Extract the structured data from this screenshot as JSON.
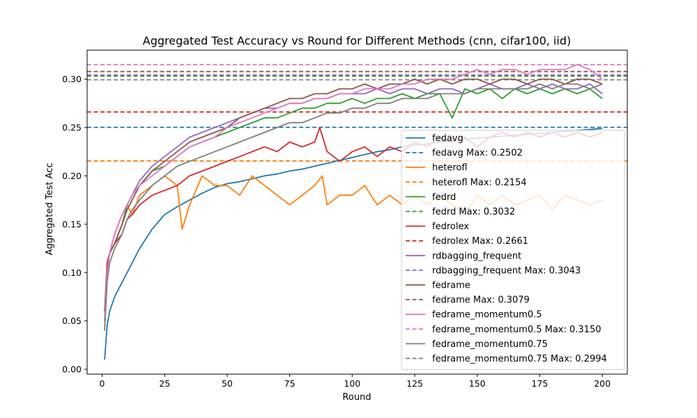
{
  "chart_data": {
    "type": "line",
    "title": "Aggregated Test Accuracy vs Round for Different Methods (cnn, cifar100, iid)",
    "xlabel": "Round",
    "ylabel": "Aggregated Test Acc",
    "xlim": [
      -6,
      210
    ],
    "ylim": [
      -0.005,
      0.33
    ],
    "xticks": [
      0,
      25,
      50,
      75,
      100,
      125,
      150,
      175,
      200
    ],
    "yticks": [
      0.0,
      0.05,
      0.1,
      0.15,
      0.2,
      0.25,
      0.3
    ],
    "xtick_labels": [
      "0",
      "25",
      "50",
      "75",
      "100",
      "125",
      "150",
      "175",
      "200"
    ],
    "ytick_labels": [
      "0.00",
      "0.05",
      "0.10",
      "0.15",
      "0.20",
      "0.25",
      "0.30"
    ],
    "grid": false,
    "legend_position": "lower-right",
    "series": [
      {
        "name": "fedavg",
        "color": "#1f77b4",
        "max": 0.2502,
        "max_label": "fedavg Max: 0.2502",
        "x": [
          1,
          2,
          3,
          5,
          8,
          10,
          12,
          15,
          18,
          20,
          25,
          30,
          35,
          40,
          45,
          50,
          55,
          60,
          65,
          70,
          75,
          80,
          85,
          90,
          95,
          100,
          105,
          110,
          115,
          120,
          125,
          130,
          135,
          140,
          145,
          150,
          155,
          160,
          165,
          170,
          175,
          180,
          185,
          190,
          195,
          200
        ],
        "y": [
          0.01,
          0.045,
          0.06,
          0.075,
          0.09,
          0.1,
          0.11,
          0.125,
          0.137,
          0.145,
          0.16,
          0.168,
          0.175,
          0.182,
          0.188,
          0.192,
          0.194,
          0.197,
          0.2,
          0.202,
          0.205,
          0.207,
          0.21,
          0.213,
          0.216,
          0.219,
          0.222,
          0.225,
          0.227,
          0.23,
          0.232,
          0.233,
          0.235,
          0.236,
          0.238,
          0.239,
          0.24,
          0.241,
          0.242,
          0.243,
          0.244,
          0.245,
          0.246,
          0.247,
          0.248,
          0.249
        ]
      },
      {
        "name": "heterofl",
        "color": "#ff7f0e",
        "max": 0.2154,
        "max_label": "heterofl Max: 0.2154",
        "x": [
          1,
          2,
          3,
          5,
          8,
          10,
          12,
          15,
          20,
          25,
          30,
          32,
          35,
          40,
          45,
          50,
          55,
          60,
          65,
          70,
          75,
          80,
          85,
          88,
          90,
          95,
          100,
          105,
          110,
          115,
          120,
          125,
          130,
          135,
          140,
          145,
          150,
          155,
          160,
          165,
          170,
          175,
          180,
          185,
          190,
          195,
          200
        ],
        "y": [
          0.04,
          0.11,
          0.12,
          0.13,
          0.15,
          0.17,
          0.16,
          0.18,
          0.19,
          0.2,
          0.19,
          0.145,
          0.17,
          0.2,
          0.19,
          0.19,
          0.18,
          0.2,
          0.19,
          0.18,
          0.17,
          0.18,
          0.19,
          0.2,
          0.17,
          0.18,
          0.18,
          0.19,
          0.17,
          0.18,
          0.17,
          0.18,
          0.17,
          0.18,
          0.17,
          0.16,
          0.18,
          0.17,
          0.18,
          0.17,
          0.175,
          0.18,
          0.165,
          0.18,
          0.175,
          0.17,
          0.175
        ]
      },
      {
        "name": "fedrd",
        "color": "#2ca02c",
        "max": 0.3032,
        "max_label": "fedrd Max: 0.3032",
        "x": [
          1,
          2,
          3,
          5,
          8,
          10,
          12,
          15,
          20,
          25,
          30,
          35,
          40,
          45,
          50,
          55,
          60,
          65,
          70,
          75,
          80,
          85,
          90,
          95,
          100,
          105,
          110,
          115,
          120,
          125,
          130,
          135,
          140,
          145,
          150,
          155,
          160,
          165,
          170,
          175,
          180,
          185,
          190,
          195,
          200
        ],
        "y": [
          0.05,
          0.1,
          0.12,
          0.13,
          0.15,
          0.17,
          0.18,
          0.19,
          0.205,
          0.21,
          0.22,
          0.23,
          0.235,
          0.24,
          0.245,
          0.25,
          0.255,
          0.26,
          0.26,
          0.265,
          0.27,
          0.27,
          0.275,
          0.275,
          0.28,
          0.275,
          0.28,
          0.28,
          0.285,
          0.28,
          0.285,
          0.285,
          0.26,
          0.29,
          0.285,
          0.29,
          0.28,
          0.29,
          0.285,
          0.29,
          0.285,
          0.29,
          0.285,
          0.29,
          0.28
        ]
      },
      {
        "name": "fedrolex",
        "color": "#d62728",
        "max": 0.2661,
        "max_label": "fedrolex Max: 0.2661",
        "x": [
          1,
          2,
          3,
          5,
          8,
          10,
          12,
          15,
          20,
          25,
          30,
          35,
          40,
          45,
          50,
          55,
          60,
          65,
          70,
          75,
          80,
          85,
          87,
          90,
          95,
          100,
          105,
          110,
          115,
          120,
          125,
          130,
          135,
          140,
          145,
          150,
          155,
          160,
          165,
          170,
          175,
          180,
          185,
          190,
          195,
          200
        ],
        "y": [
          0.06,
          0.11,
          0.12,
          0.13,
          0.14,
          0.155,
          0.16,
          0.17,
          0.18,
          0.185,
          0.19,
          0.2,
          0.205,
          0.21,
          0.215,
          0.22,
          0.225,
          0.23,
          0.225,
          0.235,
          0.23,
          0.235,
          0.25,
          0.225,
          0.215,
          0.225,
          0.23,
          0.22,
          0.23,
          0.225,
          0.235,
          0.23,
          0.24,
          0.235,
          0.24,
          0.23,
          0.24,
          0.245,
          0.24,
          0.245,
          0.24,
          0.245,
          0.24,
          0.245,
          0.24,
          0.245
        ]
      },
      {
        "name": "rdbagging_frequent",
        "color": "#9467bd",
        "max": 0.3043,
        "max_label": "rdbagging_frequent Max: 0.3043",
        "x": [
          1,
          2,
          3,
          5,
          8,
          10,
          12,
          15,
          20,
          25,
          30,
          35,
          40,
          45,
          50,
          55,
          60,
          65,
          70,
          75,
          80,
          85,
          90,
          95,
          100,
          105,
          110,
          115,
          120,
          125,
          130,
          135,
          140,
          145,
          150,
          155,
          160,
          165,
          170,
          175,
          180,
          185,
          190,
          195,
          200
        ],
        "y": [
          0.05,
          0.1,
          0.12,
          0.14,
          0.16,
          0.17,
          0.18,
          0.195,
          0.21,
          0.22,
          0.23,
          0.24,
          0.245,
          0.25,
          0.255,
          0.26,
          0.265,
          0.27,
          0.27,
          0.275,
          0.275,
          0.28,
          0.28,
          0.285,
          0.285,
          0.285,
          0.29,
          0.285,
          0.29,
          0.29,
          0.285,
          0.29,
          0.29,
          0.285,
          0.29,
          0.295,
          0.29,
          0.29,
          0.295,
          0.29,
          0.295,
          0.29,
          0.29,
          0.295,
          0.285
        ]
      },
      {
        "name": "fedrame",
        "color": "#8c564b",
        "max": 0.3079,
        "max_label": "fedrame Max: 0.3079",
        "x": [
          1,
          2,
          3,
          5,
          8,
          10,
          12,
          15,
          20,
          25,
          30,
          35,
          40,
          45,
          50,
          55,
          60,
          65,
          70,
          75,
          80,
          85,
          90,
          95,
          100,
          105,
          110,
          115,
          120,
          125,
          130,
          135,
          140,
          145,
          150,
          155,
          160,
          165,
          170,
          175,
          180,
          185,
          190,
          195,
          200
        ],
        "y": [
          0.06,
          0.1,
          0.12,
          0.13,
          0.15,
          0.165,
          0.175,
          0.19,
          0.205,
          0.215,
          0.225,
          0.235,
          0.24,
          0.245,
          0.25,
          0.26,
          0.265,
          0.27,
          0.275,
          0.28,
          0.28,
          0.285,
          0.285,
          0.29,
          0.29,
          0.295,
          0.29,
          0.295,
          0.295,
          0.3,
          0.295,
          0.3,
          0.295,
          0.3,
          0.3,
          0.295,
          0.3,
          0.3,
          0.295,
          0.3,
          0.3,
          0.295,
          0.3,
          0.3,
          0.295
        ]
      },
      {
        "name": "fedrame_momentum0.5",
        "color": "#e377c2",
        "max": 0.315,
        "max_label": "fedrame_momentum0.5 Max: 0.3150",
        "x": [
          1,
          2,
          3,
          5,
          8,
          10,
          12,
          15,
          20,
          25,
          30,
          35,
          40,
          45,
          50,
          55,
          60,
          65,
          70,
          75,
          80,
          85,
          90,
          95,
          100,
          105,
          110,
          115,
          120,
          125,
          130,
          135,
          140,
          145,
          150,
          155,
          160,
          165,
          170,
          175,
          180,
          185,
          190,
          195,
          200
        ],
        "y": [
          0.05,
          0.1,
          0.12,
          0.14,
          0.16,
          0.17,
          0.18,
          0.19,
          0.2,
          0.21,
          0.22,
          0.23,
          0.235,
          0.24,
          0.25,
          0.255,
          0.26,
          0.265,
          0.27,
          0.275,
          0.275,
          0.28,
          0.28,
          0.285,
          0.285,
          0.29,
          0.29,
          0.29,
          0.295,
          0.295,
          0.3,
          0.3,
          0.3,
          0.305,
          0.31,
          0.305,
          0.31,
          0.31,
          0.305,
          0.31,
          0.31,
          0.31,
          0.315,
          0.31,
          0.3
        ]
      },
      {
        "name": "fedrame_momentum0.75",
        "color": "#7f7f7f",
        "max": 0.2994,
        "max_label": "fedrame_momentum0.75 Max: 0.2994",
        "x": [
          1,
          2,
          3,
          5,
          8,
          10,
          12,
          15,
          20,
          25,
          30,
          35,
          40,
          45,
          50,
          55,
          60,
          65,
          70,
          75,
          80,
          85,
          90,
          95,
          100,
          105,
          110,
          115,
          120,
          125,
          130,
          135,
          140,
          145,
          150,
          155,
          160,
          165,
          170,
          175,
          180,
          185,
          190,
          195,
          200
        ],
        "y": [
          0.04,
          0.09,
          0.11,
          0.125,
          0.14,
          0.155,
          0.165,
          0.175,
          0.19,
          0.2,
          0.21,
          0.215,
          0.22,
          0.225,
          0.23,
          0.235,
          0.24,
          0.245,
          0.25,
          0.255,
          0.255,
          0.26,
          0.265,
          0.265,
          0.27,
          0.27,
          0.275,
          0.275,
          0.28,
          0.28,
          0.28,
          0.285,
          0.285,
          0.285,
          0.29,
          0.29,
          0.29,
          0.29,
          0.29,
          0.295,
          0.29,
          0.295,
          0.295,
          0.29,
          0.295
        ]
      }
    ]
  }
}
